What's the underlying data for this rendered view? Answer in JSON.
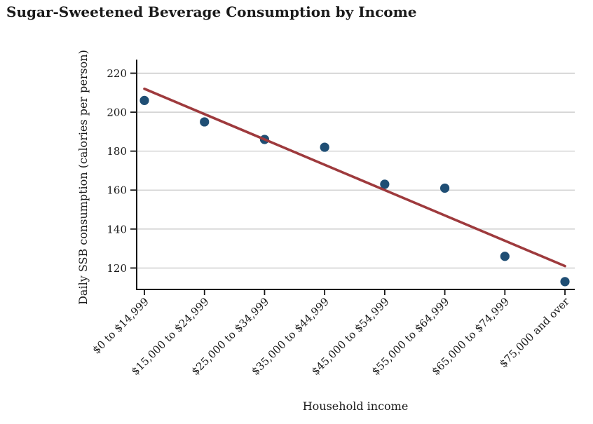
{
  "title": "Sugar-Sweetened Beverage Consumption by Income",
  "chart_data": {
    "type": "scatter",
    "title": "Sugar-Sweetened Beverage Consumption by Income",
    "xlabel": "Household income",
    "ylabel": "Daily SSB consumption (calories per person)",
    "categories": [
      "$0 to $14,999",
      "$15,000 to $24,999",
      "$25,000 to $34,999",
      "$35,000 to $44,999",
      "$45,000 to $54,999",
      "$55,000 to $64,999",
      "$65,000 to $74,999",
      "$75,000 and over"
    ],
    "series": [
      {
        "name": "Daily SSB consumption (calories per person)",
        "type": "scatter",
        "values": [
          206,
          195,
          186,
          182,
          163,
          161,
          126,
          113
        ]
      },
      {
        "name": "Linear trend",
        "type": "line",
        "values": [
          212,
          199,
          186,
          173,
          160,
          147,
          134,
          121
        ]
      }
    ],
    "yticks": [
      120,
      140,
      160,
      180,
      200,
      220
    ],
    "ylim": [
      109,
      227
    ],
    "grid": true,
    "legend_position": "none",
    "colors": {
      "points": "#1f4e74",
      "trend": "#9e3a3d",
      "gridline": "#c9c9c9",
      "axis": "#141414",
      "text": "#1a1a1a"
    }
  }
}
